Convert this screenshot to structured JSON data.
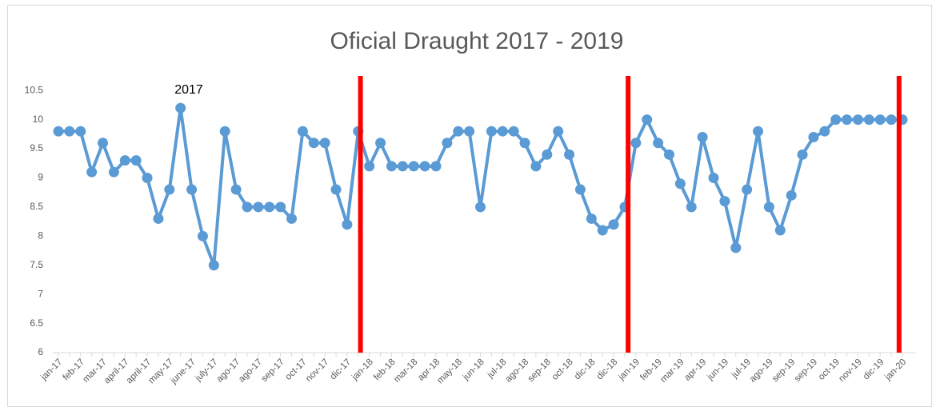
{
  "chart_data": {
    "type": "line",
    "title": "Oficial Draught 2017 - 2019",
    "annotation": "2017",
    "categories": [
      "jan-17",
      null,
      "feb-17",
      null,
      "mar-17",
      null,
      "april-17",
      null,
      "april-17",
      null,
      "may-17",
      null,
      "june-17",
      null,
      "july-17",
      null,
      "ago-17",
      null,
      "ago-17",
      null,
      "sep-17",
      null,
      "oct-17",
      null,
      "nov-17",
      null,
      "dic-17",
      null,
      "jan-18",
      null,
      "feb-18",
      null,
      "mar-18",
      null,
      "apr-18",
      null,
      "may-18",
      null,
      "jun-18",
      null,
      "jul-18",
      null,
      "ago-18",
      null,
      "sep-18",
      null,
      "oct-18",
      null,
      "dic-18",
      null,
      "dic-18",
      null,
      "jan-19",
      null,
      "feb-19",
      null,
      "mar-19",
      null,
      "apr-19",
      null,
      "jun-19",
      null,
      "jul-19",
      null,
      "ago-19",
      null,
      "sep-19",
      null,
      "sep-19",
      null,
      "oct-19",
      null,
      "nov-19",
      null,
      "dic-19",
      null,
      "jan-20"
    ],
    "series": [
      {
        "name": "Draught",
        "color": "#5b9bd5",
        "values": [
          9.8,
          9.8,
          9.8,
          9.1,
          9.6,
          9.1,
          9.3,
          9.3,
          9.0,
          8.3,
          8.8,
          10.2,
          8.8,
          8.0,
          7.5,
          9.8,
          8.8,
          8.5,
          8.5,
          8.5,
          8.5,
          8.3,
          9.8,
          9.6,
          9.6,
          8.8,
          8.2,
          9.8,
          9.2,
          9.6,
          9.2,
          9.2,
          9.2,
          9.2,
          9.2,
          9.6,
          9.8,
          9.8,
          8.5,
          9.8,
          9.8,
          9.8,
          9.6,
          9.2,
          9.4,
          9.8,
          9.4,
          8.8,
          8.3,
          8.1,
          8.2,
          8.5,
          9.6,
          10.0,
          9.6,
          9.4,
          8.9,
          8.5,
          9.7,
          9.0,
          8.6,
          7.8,
          8.8,
          9.8,
          8.5,
          8.1,
          8.7,
          9.4,
          9.7,
          9.8,
          10.0,
          10.0,
          10.0,
          10.0,
          10.0,
          10.0,
          10.0
        ]
      }
    ],
    "vlines": [
      27.2,
      51.3,
      75.7
    ],
    "vline_color": "#ff0000",
    "ylim": [
      6,
      10.75
    ],
    "yticks": [
      6,
      6.5,
      7,
      7.5,
      8,
      8.5,
      9,
      9.5,
      10,
      10.5
    ],
    "grid": false
  }
}
